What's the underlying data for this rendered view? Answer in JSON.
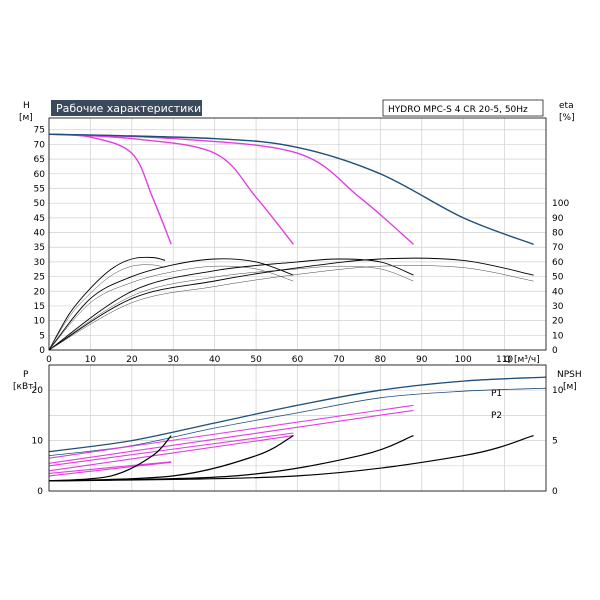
{
  "chart_data": [
    {
      "type": "line",
      "title": "Рабочие характеристики",
      "model": "HYDRO MPC-S 4 CR 20-5, 50Hz",
      "ylabel_left": "H",
      "ylabel_left_unit": "[м]",
      "ylabel_right": "eta",
      "ylabel_right_unit": "[%]",
      "xlabel": "Q [м³/ч]",
      "xlim": [
        0,
        120
      ],
      "ylim_left": [
        0,
        75
      ],
      "ylim_right": [
        0,
        100
      ],
      "x_ticks": [
        "0",
        "10",
        "20",
        "30",
        "40",
        "50",
        "60",
        "70",
        "80",
        "90",
        "100",
        "110"
      ],
      "y_left_ticks": [
        "0",
        "5",
        "10",
        "15",
        "20",
        "25",
        "30",
        "35",
        "40",
        "45",
        "50",
        "55",
        "60",
        "65",
        "70",
        "75"
      ],
      "y_right_ticks": [
        "0",
        "10",
        "20",
        "30",
        "40",
        "50",
        "60",
        "70",
        "80",
        "90",
        "100"
      ],
      "grid": true,
      "colors": {
        "head_max": "#1f4e79",
        "head_reduced": "#e040e0",
        "eta": "#000000",
        "header_bg": "#3a4a5c"
      },
      "head_curves": [
        {
          "pumps": 1,
          "color": "#e040e0",
          "points": [
            [
              0,
              73.5
            ],
            [
              10,
              72.5
            ],
            [
              20,
              67
            ],
            [
              25,
              52
            ],
            [
              29.5,
              36
            ]
          ]
        },
        {
          "pumps": 2,
          "color": "#e040e0",
          "points": [
            [
              0,
              73.5
            ],
            [
              20,
              72
            ],
            [
              40,
              67
            ],
            [
              50,
              52
            ],
            [
              59,
              36
            ]
          ]
        },
        {
          "pumps": 3,
          "color": "#e040e0",
          "points": [
            [
              0,
              73.5
            ],
            [
              30,
              72
            ],
            [
              60,
              67
            ],
            [
              75,
              52
            ],
            [
              88,
              36
            ]
          ]
        },
        {
          "pumps": 4,
          "color": "#1f4e79",
          "points": [
            [
              0,
              73.5
            ],
            [
              40,
              72
            ],
            [
              60,
              69
            ],
            [
              80,
              60
            ],
            [
              100,
              45
            ],
            [
              117,
              36
            ]
          ]
        }
      ],
      "eta_curves": [
        {
          "points": [
            [
              0,
              0
            ],
            [
              5,
              25
            ],
            [
              10,
              42
            ],
            [
              15,
              55
            ],
            [
              20,
              62
            ],
            [
              25,
              63
            ],
            [
              28,
              61
            ]
          ]
        },
        {
          "points": [
            [
              0,
              0
            ],
            [
              10,
              35
            ],
            [
              20,
              50
            ],
            [
              30,
              58
            ],
            [
              40,
              62
            ],
            [
              50,
              60
            ],
            [
              59,
              51
            ]
          ]
        },
        {
          "points": [
            [
              0,
              0
            ],
            [
              20,
              40
            ],
            [
              40,
              54
            ],
            [
              60,
              60
            ],
            [
              70,
              62
            ],
            [
              80,
              60
            ],
            [
              88,
              51
            ]
          ]
        },
        {
          "points": [
            [
              0,
              0
            ],
            [
              20,
              35
            ],
            [
              40,
              47
            ],
            [
              60,
              56
            ],
            [
              80,
              62
            ],
            [
              100,
              61
            ],
            [
              117,
              51
            ]
          ]
        }
      ]
    },
    {
      "type": "line",
      "ylabel_left": "P",
      "ylabel_left_unit": "[кВт]",
      "ylabel_right": "NPSH",
      "ylabel_right_unit": "[м]",
      "xlim": [
        0,
        120
      ],
      "ylim_left": [
        0,
        25
      ],
      "ylim_right": [
        0,
        12.5
      ],
      "y_left_ticks": [
        "0",
        "10",
        "20"
      ],
      "y_right_ticks": [
        "0",
        "5",
        "10"
      ],
      "series_labels": [
        "P1",
        "P2"
      ],
      "power_P1": [
        [
          0,
          7.8
        ],
        [
          20,
          10
        ],
        [
          40,
          13.5
        ],
        [
          60,
          17
        ],
        [
          80,
          20
        ],
        [
          100,
          21.8
        ],
        [
          120,
          22.6
        ]
      ],
      "power_P2": [
        [
          0,
          7
        ],
        [
          20,
          9
        ],
        [
          40,
          12.5
        ],
        [
          60,
          15.5
        ],
        [
          80,
          18.5
        ],
        [
          100,
          19.8
        ],
        [
          120,
          20.4
        ]
      ],
      "power_reduced": [
        [
          [
            0,
            3
          ],
          [
            29.5,
            5.7
          ]
        ],
        [
          [
            0,
            3.5
          ],
          [
            29.5,
            5.8
          ]
        ],
        [
          [
            0,
            4
          ],
          [
            59,
            11
          ]
        ],
        [
          [
            0,
            5
          ],
          [
            59,
            11.5
          ]
        ],
        [
          [
            0,
            5.5
          ],
          [
            88,
            16
          ]
        ],
        [
          [
            0,
            6.5
          ],
          [
            88,
            17
          ]
        ]
      ],
      "npsh": [
        [
          [
            0,
            1
          ],
          [
            15,
            1.5
          ],
          [
            25,
            3.5
          ],
          [
            29.5,
            5.5
          ]
        ],
        [
          [
            0,
            1
          ],
          [
            30,
            1.5
          ],
          [
            50,
            3.5
          ],
          [
            59,
            5.5
          ]
        ],
        [
          [
            0,
            1
          ],
          [
            45,
            1.5
          ],
          [
            75,
            3.5
          ],
          [
            88,
            5.5
          ]
        ],
        [
          [
            0,
            1
          ],
          [
            60,
            1.5
          ],
          [
            100,
            3.5
          ],
          [
            117,
            5.5
          ]
        ]
      ]
    }
  ]
}
